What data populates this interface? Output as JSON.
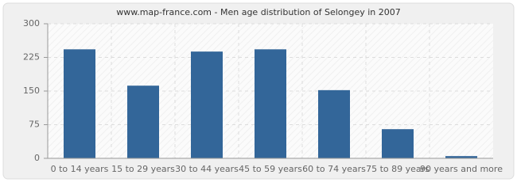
{
  "chart_data": {
    "type": "bar",
    "title": "www.map-france.com - Men age distribution of Selongey in 2007",
    "categories": [
      "0 to 14 years",
      "15 to 29 years",
      "30 to 44 years",
      "45 to 59 years",
      "60 to 74 years",
      "75 to 89 years",
      "90 years and more"
    ],
    "values": [
      243,
      162,
      238,
      243,
      152,
      65,
      5
    ],
    "color": "#336699",
    "ylim": [
      0,
      300
    ],
    "yticks": [
      0,
      75,
      150,
      225,
      300
    ],
    "grid": true
  }
}
